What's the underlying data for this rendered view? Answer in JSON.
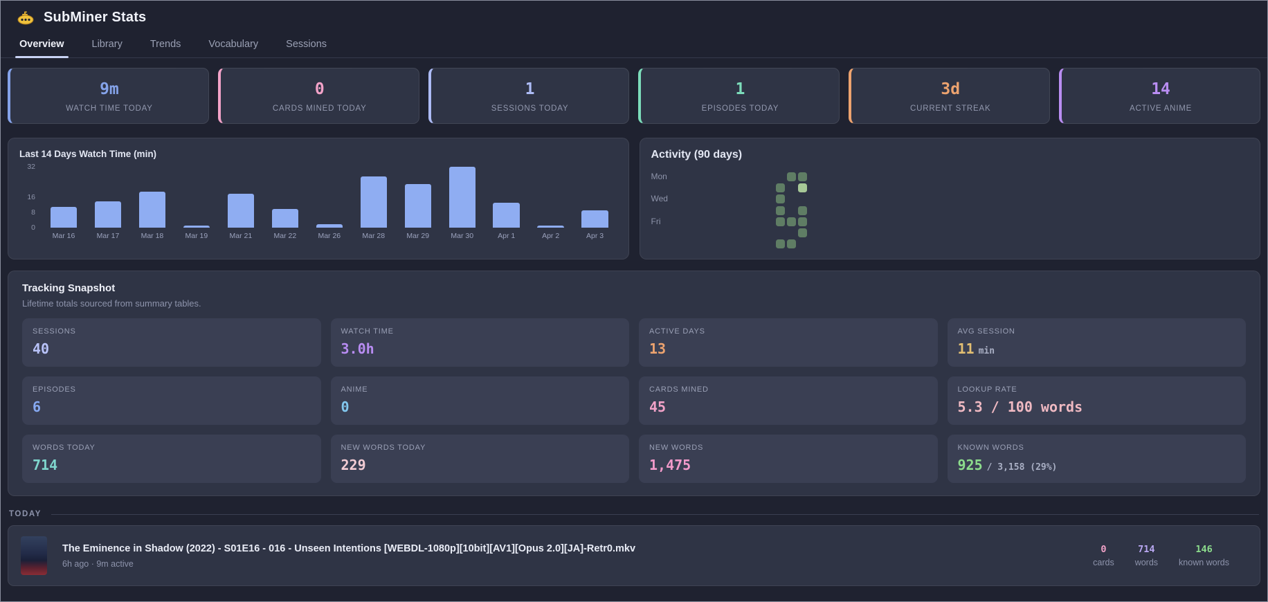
{
  "header": {
    "title": "SubMiner Stats",
    "icon": "yellow-submarine"
  },
  "tabs": [
    {
      "label": "Overview",
      "active": true
    },
    {
      "label": "Library",
      "active": false
    },
    {
      "label": "Trends",
      "active": false
    },
    {
      "label": "Vocabulary",
      "active": false
    },
    {
      "label": "Sessions",
      "active": false
    }
  ],
  "stat_cards": [
    {
      "value": "9m",
      "label": "WATCH TIME TODAY",
      "color": "#85a3ea"
    },
    {
      "value": "0",
      "label": "CARDS MINED TODAY",
      "color": "#f2a2c8"
    },
    {
      "value": "1",
      "label": "SESSIONS TODAY",
      "color": "#adbbf5"
    },
    {
      "value": "1",
      "label": "EPISODES TODAY",
      "color": "#7cdcba"
    },
    {
      "value": "3d",
      "label": "CURRENT STREAK",
      "color": "#eda36f"
    },
    {
      "value": "14",
      "label": "ACTIVE ANIME",
      "color": "#b98df2"
    }
  ],
  "chart_data": {
    "type": "bar",
    "title": "Last 14 Days Watch Time (min)",
    "categories": [
      "Mar 16",
      "Mar 17",
      "Mar 18",
      "Mar 19",
      "Mar 21",
      "Mar 22",
      "Mar 26",
      "Mar 28",
      "Mar 29",
      "Mar 30",
      "Apr 1",
      "Apr 2",
      "Apr 3"
    ],
    "values": [
      11,
      14,
      19,
      1,
      18,
      10,
      2,
      27,
      23,
      32,
      13,
      1,
      9
    ],
    "yticks": [
      0,
      8,
      16,
      32
    ],
    "ylim": [
      0,
      32
    ],
    "xlabel": "",
    "ylabel": "",
    "grid": false,
    "bar_color": "#8fadf2",
    "legend": false
  },
  "activity": {
    "title": "Activity (90 days)",
    "day_labels": [
      "Mon",
      "Wed",
      "Fri"
    ],
    "rows": 7,
    "weeks": 11,
    "levels": {
      "mid": "#5f7d64",
      "high": "#a7c897"
    },
    "cells": [
      {
        "row": 1,
        "col": 10,
        "level": "mid"
      },
      {
        "row": 1,
        "col": 11,
        "level": "mid"
      },
      {
        "row": 2,
        "col": 9,
        "level": "mid"
      },
      {
        "row": 2,
        "col": 11,
        "level": "high"
      },
      {
        "row": 3,
        "col": 9,
        "level": "mid"
      },
      {
        "row": 4,
        "col": 9,
        "level": "mid"
      },
      {
        "row": 4,
        "col": 11,
        "level": "mid"
      },
      {
        "row": 5,
        "col": 9,
        "level": "mid"
      },
      {
        "row": 5,
        "col": 10,
        "level": "mid"
      },
      {
        "row": 5,
        "col": 11,
        "level": "mid"
      },
      {
        "row": 6,
        "col": 11,
        "level": "mid"
      },
      {
        "row": 7,
        "col": 9,
        "level": "mid"
      },
      {
        "row": 7,
        "col": 10,
        "level": "mid"
      }
    ]
  },
  "snapshot": {
    "title": "Tracking Snapshot",
    "subtitle": "Lifetime totals sourced from summary tables.",
    "tiles": [
      {
        "label": "SESSIONS",
        "value": "40",
        "suffix": "",
        "color": "#b9c3fa"
      },
      {
        "label": "WATCH TIME",
        "value": "3.0h",
        "suffix": "",
        "color": "#b88cf2"
      },
      {
        "label": "ACTIVE DAYS",
        "value": "13",
        "suffix": "",
        "color": "#eda36f"
      },
      {
        "label": "AVG SESSION",
        "value": "11",
        "suffix": "min",
        "color": "#e3bf72"
      },
      {
        "label": "EPISODES",
        "value": "6",
        "suffix": "",
        "color": "#86a9f2"
      },
      {
        "label": "ANIME",
        "value": "0",
        "suffix": "",
        "color": "#82c7ee"
      },
      {
        "label": "CARDS MINED",
        "value": "45",
        "suffix": "",
        "color": "#f2a2c8"
      },
      {
        "label": "LOOKUP RATE",
        "value": "5.3 / 100 words",
        "suffix": "",
        "color": "#efb9c2"
      },
      {
        "label": "WORDS TODAY",
        "value": "714",
        "suffix": "",
        "color": "#7fd6cd"
      },
      {
        "label": "NEW WORDS TODAY",
        "value": "229",
        "suffix": "",
        "color": "#f2ccd4"
      },
      {
        "label": "NEW WORDS",
        "value": "1,475",
        "suffix": "",
        "color": "#f29aca"
      },
      {
        "label": "KNOWN WORDS",
        "value": "925",
        "suffix": "/ 3,158 (29%)",
        "color": "#8cdc8c"
      }
    ]
  },
  "today": {
    "heading": "TODAY",
    "item": {
      "title": "The Eminence in Shadow (2022) - S01E16 - 016 - Unseen Intentions [WEBDL-1080p][10bit][AV1][Opus 2.0][JA]-Retr0.mkv",
      "meta": "6h ago · 9m active",
      "stats": [
        {
          "value": "0",
          "label": "cards",
          "color": "#f2a2c8"
        },
        {
          "value": "714",
          "label": "words",
          "color": "#b9a8f2"
        },
        {
          "value": "146",
          "label": "known words",
          "color": "#8cdc8c"
        }
      ]
    }
  }
}
